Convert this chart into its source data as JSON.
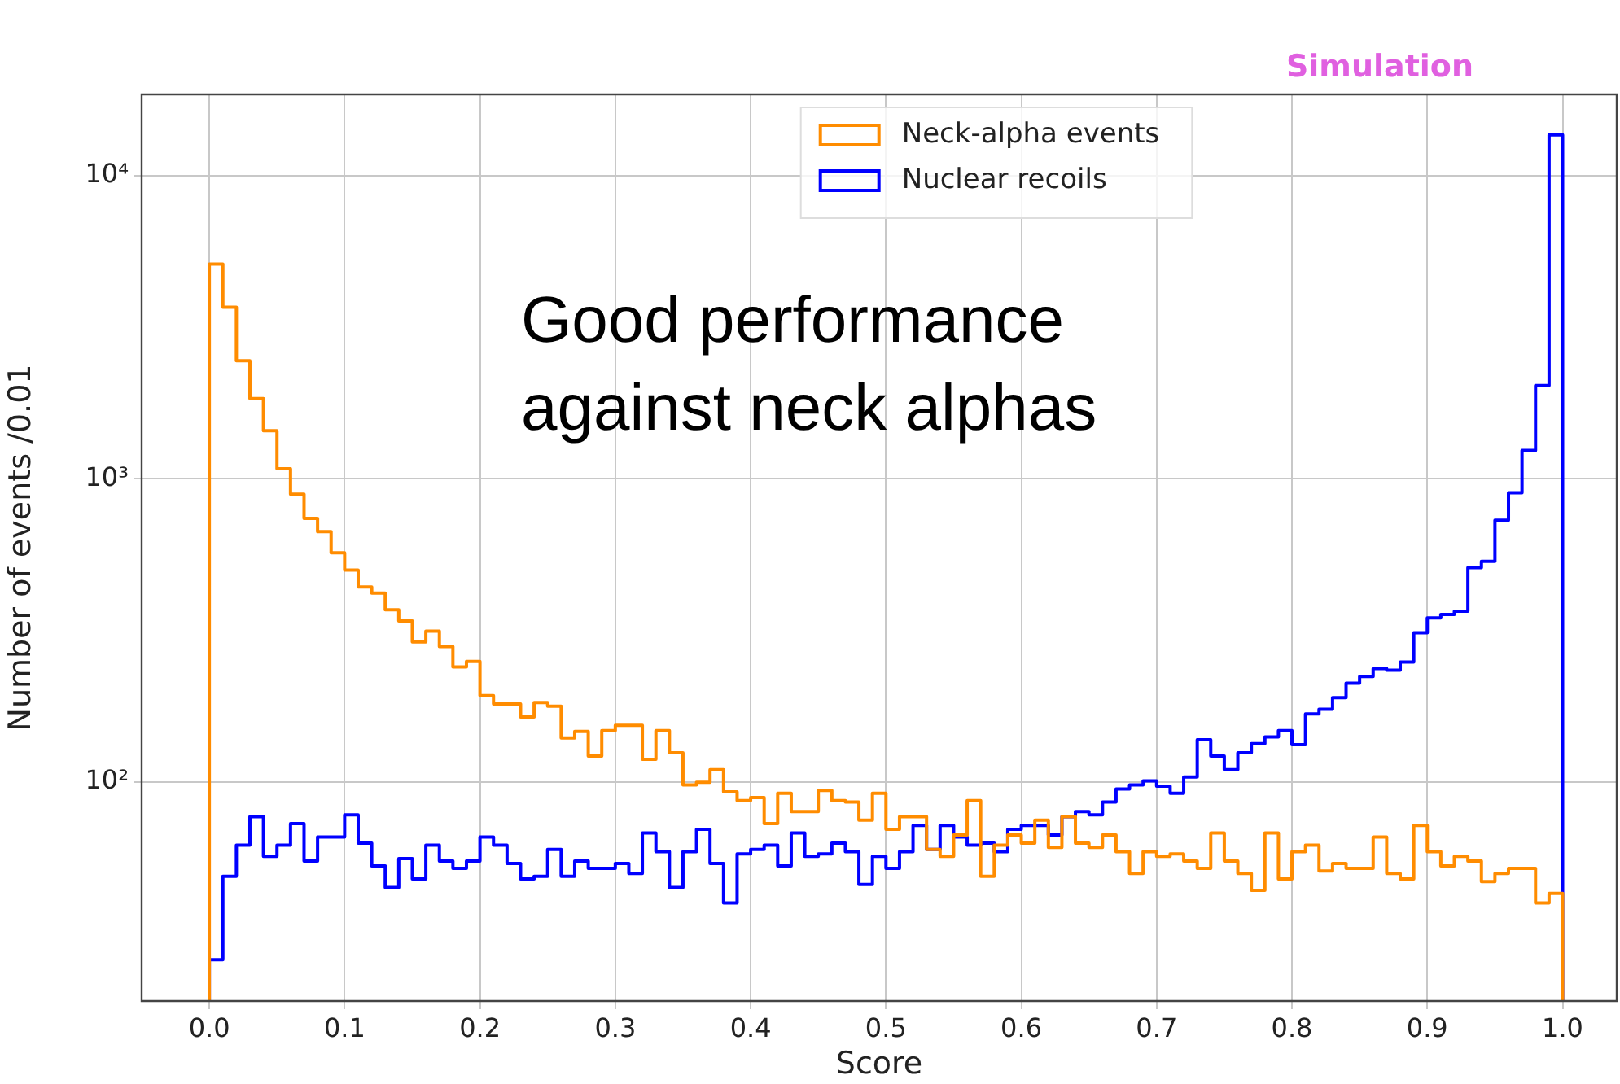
{
  "chart_data": {
    "type": "histogram",
    "xlabel": "Score",
    "ylabel": "Number of events /0.01",
    "annotations": [
      "Good performance against neck alphas",
      "Simulation"
    ],
    "bins": [
      0,
      0.01,
      0.02,
      0.03,
      0.04,
      0.05,
      0.06,
      0.07,
      0.08,
      0.09,
      0.1,
      0.11,
      0.12,
      0.13,
      0.14,
      0.15,
      0.16,
      0.17,
      0.18,
      0.19,
      0.2,
      0.21,
      0.22,
      0.23,
      0.24,
      0.25,
      0.26,
      0.27,
      0.28,
      0.29,
      0.3,
      0.31,
      0.32,
      0.33,
      0.34,
      0.35,
      0.36,
      0.37,
      0.38,
      0.39,
      0.4,
      0.41,
      0.42,
      0.43,
      0.44,
      0.45,
      0.46,
      0.47,
      0.48,
      0.49,
      0.5,
      0.51,
      0.52,
      0.53,
      0.54,
      0.55,
      0.56,
      0.57,
      0.58,
      0.59,
      0.6,
      0.61,
      0.62,
      0.63,
      0.64,
      0.65,
      0.66,
      0.67,
      0.68,
      0.69,
      0.7,
      0.71,
      0.72,
      0.73,
      0.74,
      0.75,
      0.76,
      0.77,
      0.78,
      0.79,
      0.8,
      0.81,
      0.82,
      0.83,
      0.84,
      0.85,
      0.86,
      0.87,
      0.88,
      0.89,
      0.9,
      0.91,
      0.92,
      0.93,
      0.94,
      0.95,
      0.96,
      0.97,
      0.98,
      0.99,
      1
    ],
    "series": [
      {
        "name": "Neck-alpha events",
        "color": "#ff8c00",
        "values": [
          5100,
          3680,
          2450,
          1840,
          1440,
          1080,
          890,
          740,
          670,
          570,
          500,
          440,
          420,
          370,
          340,
          290,
          315,
          280,
          240,
          250,
          193,
          181,
          181,
          164,
          183,
          178,
          140,
          147,
          122,
          148,
          154,
          154,
          119,
          148,
          125,
          98,
          100,
          110,
          93,
          87,
          89,
          73,
          92,
          80,
          80,
          94,
          87,
          86,
          75,
          92,
          70,
          77,
          77,
          60,
          57,
          67,
          87,
          49,
          62,
          67,
          63,
          75,
          61,
          77,
          63,
          61,
          67,
          59,
          50,
          59,
          57,
          58,
          55,
          52,
          68,
          55,
          50,
          44,
          68,
          48,
          59,
          62,
          51,
          54,
          52,
          52,
          66,
          50,
          48,
          72,
          59,
          53,
          57,
          55,
          47,
          50,
          52,
          52,
          40,
          43
        ]
      },
      {
        "name": "Nuclear recoils",
        "color": "#0000ff",
        "values": [
          26,
          49,
          62,
          77,
          57,
          62,
          73,
          55,
          66,
          66,
          78,
          63,
          53,
          45,
          56,
          48,
          62,
          55,
          52,
          55,
          66,
          62,
          54,
          48,
          49,
          60,
          49,
          55,
          52,
          52,
          54,
          50,
          68,
          59,
          45,
          59,
          70,
          54,
          40,
          58,
          60,
          62,
          53,
          68,
          57,
          58,
          63,
          59,
          46,
          57,
          52,
          59,
          72,
          60,
          72,
          66,
          62,
          63,
          59,
          70,
          72,
          72,
          67,
          77,
          80,
          78,
          86,
          95,
          98,
          101,
          97,
          92,
          104,
          138,
          122,
          110,
          125,
          134,
          141,
          148,
          133,
          168,
          174,
          190,
          212,
          223,
          237,
          234,
          249,
          311,
          348,
          357,
          366,
          510,
          535,
          730,
          900,
          1240,
          2030,
          13600
        ]
      }
    ],
    "log": "y",
    "xlim": [
      -0.05,
      1.04
    ],
    "ylim": [
      19,
      18500
    ],
    "xticks": [
      {
        "value": 0,
        "label": "0.0"
      },
      {
        "value": 0.1,
        "label": "0.1"
      },
      {
        "value": 0.2,
        "label": "0.2"
      },
      {
        "value": 0.3,
        "label": "0.3"
      },
      {
        "value": 0.4,
        "label": "0.4"
      },
      {
        "value": 0.5,
        "label": "0.5"
      },
      {
        "value": 0.6,
        "label": "0.6"
      },
      {
        "value": 0.7,
        "label": "0.7"
      },
      {
        "value": 0.8,
        "label": "0.8"
      },
      {
        "value": 0.9,
        "label": "0.9"
      },
      {
        "value": 1,
        "label": "1.0"
      }
    ],
    "yticks": [
      {
        "value": 100,
        "label": "10²"
      },
      {
        "value": 1000,
        "label": "10³"
      },
      {
        "value": 10000,
        "label": "10⁴"
      }
    ],
    "grid": true,
    "legend": "top"
  }
}
